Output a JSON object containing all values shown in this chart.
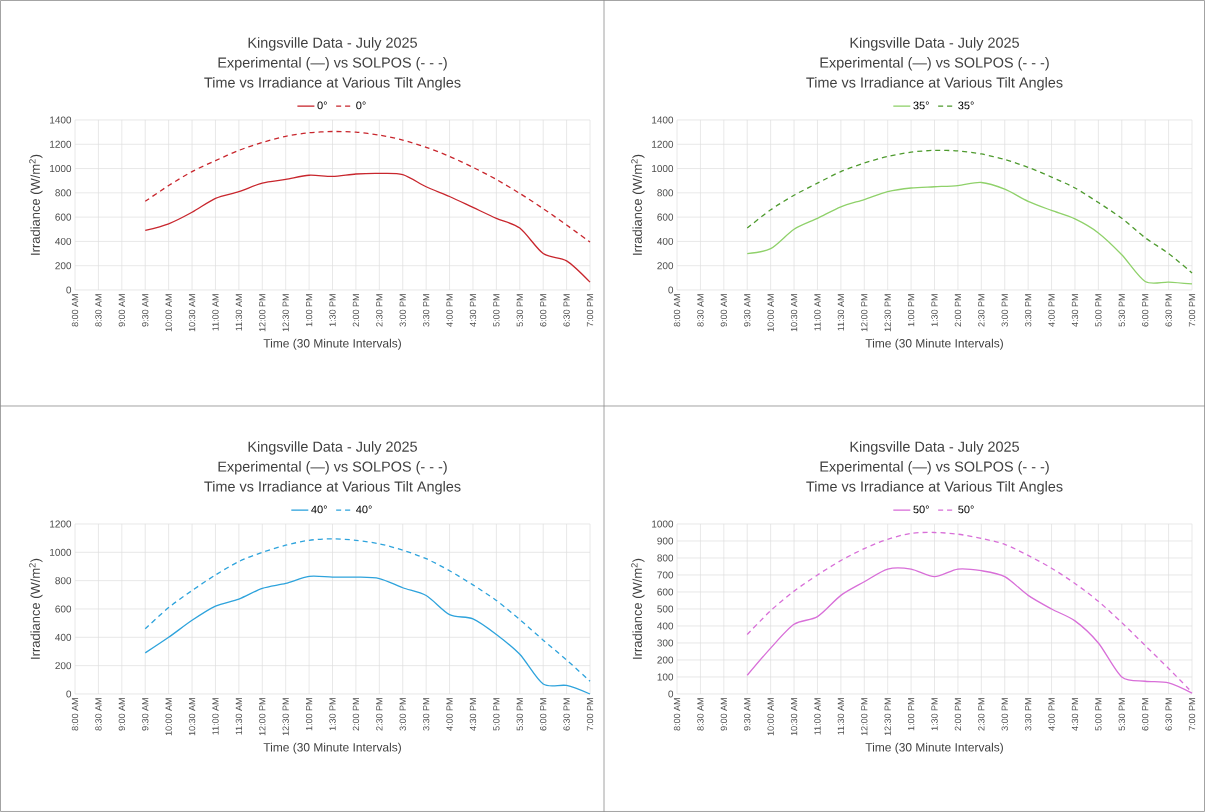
{
  "chart_data": [
    {
      "type": "line",
      "title": "Kingsville Data - July 2025",
      "subtitle": "Experimental (—) vs SOLPOS (- - -)",
      "annotations": [
        "Time vs Irradiance at Various Tilt Angles"
      ],
      "xlabel": "Time (30 Minute Intervals)",
      "ylabel": "Irradiance (W/m$^{2}$)",
      "categories": [
        "8:00 AM",
        "8:30 AM",
        "9:00 AM",
        "9:30 AM",
        "10:00 AM",
        "10:30 AM",
        "11:00 AM",
        "11:30 AM",
        "12:00 PM",
        "12:30 PM",
        "1:00 PM",
        "1:30 PM",
        "2:00 PM",
        "2:30 PM",
        "3:00 PM",
        "3:30 PM",
        "4:00 PM",
        "4:30 PM",
        "5:00 PM",
        "5:30 PM",
        "6:00 PM",
        "6:30 PM",
        "7:00 PM"
      ],
      "ylim": [
        0,
        1400
      ],
      "yticks": [
        0,
        200,
        400,
        600,
        800,
        1000,
        1200,
        1400
      ],
      "grid": true,
      "legend": "top",
      "series": [
        {
          "name": "0°",
          "color": "#c8262d",
          "line_style": "solid",
          "values": [
            null,
            null,
            null,
            490,
            545,
            640,
            755,
            810,
            880,
            910,
            945,
            935,
            955,
            960,
            950,
            850,
            770,
            680,
            590,
            510,
            300,
            240,
            65
          ]
        },
        {
          "name": "0°",
          "color": "#c8262d",
          "line_style": "dashed",
          "values": [
            null,
            null,
            null,
            730,
            860,
            975,
            1065,
            1150,
            1215,
            1265,
            1295,
            1305,
            1300,
            1275,
            1235,
            1175,
            1100,
            1010,
            910,
            795,
            670,
            535,
            395
          ]
        }
      ]
    },
    {
      "type": "line",
      "title": "Kingsville Data - July 2025",
      "subtitle": "Experimental (—) vs SOLPOS (- - -)",
      "annotations": [
        "Time vs Irradiance at Various Tilt Angles"
      ],
      "xlabel": "Time (30 Minute Intervals)",
      "ylabel": "Irradiance (W/m$^{2}$)",
      "categories": [
        "8:00 AM",
        "8:30 AM",
        "9:00 AM",
        "9:30 AM",
        "10:00 AM",
        "10:30 AM",
        "11:00 AM",
        "11:30 AM",
        "12:00 PM",
        "12:30 PM",
        "1:00 PM",
        "1:30 PM",
        "2:00 PM",
        "2:30 PM",
        "3:00 PM",
        "3:30 PM",
        "4:00 PM",
        "4:30 PM",
        "5:00 PM",
        "5:30 PM",
        "6:00 PM",
        "6:30 PM",
        "7:00 PM"
      ],
      "ylim": [
        0,
        1400
      ],
      "yticks": [
        0,
        200,
        400,
        600,
        800,
        1000,
        1200,
        1400
      ],
      "grid": true,
      "legend": "top",
      "series": [
        {
          "name": "35°",
          "color": "#8fd16a",
          "line_style": "solid",
          "values": [
            null,
            null,
            null,
            300,
            340,
            500,
            590,
            685,
            745,
            810,
            840,
            850,
            860,
            885,
            830,
            730,
            655,
            585,
            470,
            290,
            70,
            65,
            50
          ]
        },
        {
          "name": "35°",
          "color": "#4e9a2e",
          "line_style": "dashed",
          "values": [
            null,
            null,
            null,
            510,
            660,
            780,
            880,
            975,
            1045,
            1100,
            1135,
            1150,
            1145,
            1120,
            1075,
            1010,
            930,
            840,
            720,
            590,
            430,
            300,
            140
          ]
        }
      ]
    },
    {
      "type": "line",
      "title": "Kingsville Data - July 2025",
      "subtitle": "Experimental (—) vs SOLPOS (- - -)",
      "annotations": [
        "Time vs Irradiance at Various Tilt Angles"
      ],
      "xlabel": "Time (30 Minute Intervals)",
      "ylabel": "Irradiance (W/m$^{2}$)",
      "categories": [
        "8:00 AM",
        "8:30 AM",
        "9:00 AM",
        "9:30 AM",
        "10:00 AM",
        "10:30 AM",
        "11:00 AM",
        "11:30 AM",
        "12:00 PM",
        "12:30 PM",
        "1:00 PM",
        "1:30 PM",
        "2:00 PM",
        "2:30 PM",
        "3:00 PM",
        "3:30 PM",
        "4:00 PM",
        "4:30 PM",
        "5:00 PM",
        "5:30 PM",
        "6:00 PM",
        "6:30 PM",
        "7:00 PM"
      ],
      "ylim": [
        0,
        1200
      ],
      "yticks": [
        0,
        200,
        400,
        600,
        800,
        1000,
        1200
      ],
      "grid": true,
      "legend": "top",
      "series": [
        {
          "name": "40°",
          "color": "#2ea3dc",
          "line_style": "solid",
          "values": [
            null,
            null,
            null,
            290,
            400,
            520,
            620,
            670,
            745,
            780,
            830,
            825,
            825,
            815,
            750,
            695,
            560,
            530,
            420,
            280,
            70,
            60,
            0
          ]
        },
        {
          "name": "40°",
          "color": "#2ea3dc",
          "line_style": "dashed",
          "values": [
            null,
            null,
            null,
            460,
            610,
            730,
            840,
            935,
            1000,
            1050,
            1085,
            1095,
            1085,
            1060,
            1015,
            955,
            870,
            770,
            660,
            525,
            380,
            240,
            90
          ]
        }
      ]
    },
    {
      "type": "line",
      "title": "Kingsville Data - July 2025",
      "subtitle": "Experimental (—) vs SOLPOS (- - -)",
      "annotations": [
        "Time vs Irradiance at Various Tilt Angles"
      ],
      "xlabel": "Time (30 Minute Intervals)",
      "ylabel": "Irradiance (W/m$^{2}$)",
      "categories": [
        "8:00 AM",
        "8:30 AM",
        "9:00 AM",
        "9:30 AM",
        "10:00 AM",
        "10:30 AM",
        "11:00 AM",
        "11:30 AM",
        "12:00 PM",
        "12:30 PM",
        "1:00 PM",
        "1:30 PM",
        "2:00 PM",
        "2:30 PM",
        "3:00 PM",
        "3:30 PM",
        "4:00 PM",
        "4:30 PM",
        "5:00 PM",
        "5:30 PM",
        "6:00 PM",
        "6:30 PM",
        "7:00 PM"
      ],
      "ylim": [
        0,
        1000
      ],
      "yticks": [
        0,
        100,
        200,
        300,
        400,
        500,
        600,
        700,
        800,
        900,
        1000
      ],
      "grid": true,
      "legend": "top",
      "series": [
        {
          "name": "50°",
          "color": "#d86fd8",
          "line_style": "solid",
          "values": [
            null,
            null,
            null,
            110,
            270,
            410,
            455,
            580,
            660,
            735,
            735,
            690,
            735,
            725,
            690,
            580,
            500,
            430,
            300,
            100,
            75,
            65,
            5
          ]
        },
        {
          "name": "50°",
          "color": "#d86fd8",
          "line_style": "dashed",
          "values": [
            null,
            null,
            null,
            350,
            490,
            605,
            700,
            785,
            855,
            910,
            945,
            950,
            940,
            915,
            880,
            815,
            740,
            650,
            545,
            420,
            285,
            150,
            10
          ]
        }
      ]
    }
  ]
}
